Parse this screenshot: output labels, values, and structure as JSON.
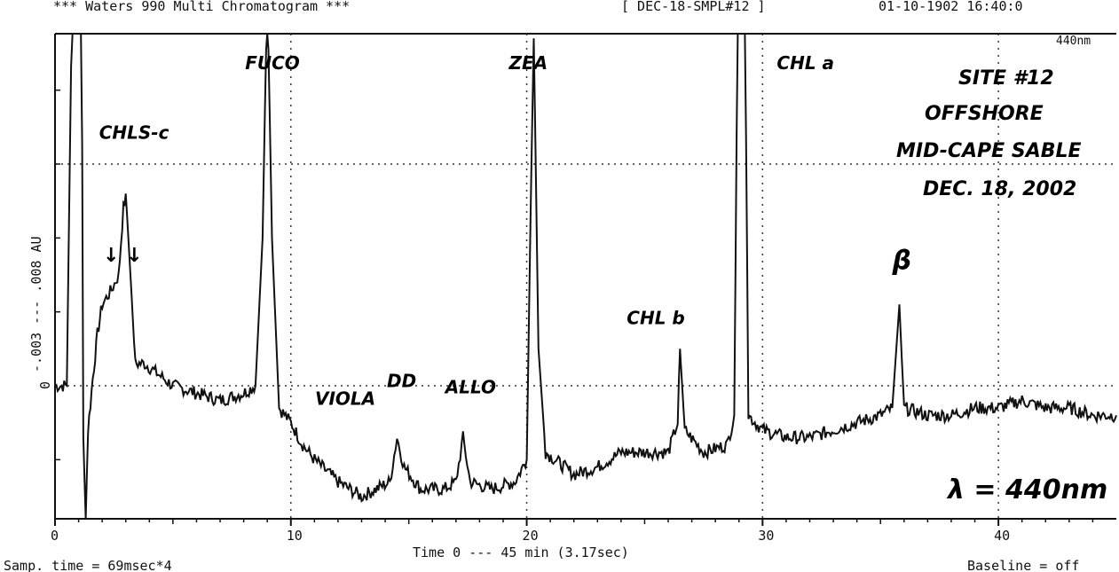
{
  "header": {
    "left": "*** Waters 990 Multi Chromatogram ***",
    "sample": "[ DEC-18-SMPL#12 ]",
    "datetime": "01-10-1902 16:40:0",
    "corner_wavelength": "440nm"
  },
  "footer": {
    "samp_time": "Samp. time = 69msec*4",
    "time_label": "Time  0 --- 45 min  (3.17sec)",
    "baseline": "Baseline = off"
  },
  "annotations": {
    "site_lines": [
      "SITE #12",
      "OFFSHORE",
      "MID-CAPE SABLE",
      "DEC. 18, 2002"
    ],
    "wavelength": "λ = 440nm",
    "arrows": "↓ ↓"
  },
  "chart_data": {
    "type": "line",
    "title": "*** Waters 990 Multi Chromatogram ***",
    "xlabel": "Time  0 --- 45 min  (3.17sec)",
    "ylabel": "-.003 --- .008 AU",
    "xlim": [
      0,
      45
    ],
    "ylim": [
      -0.003,
      0.008
    ],
    "x_ticks": [
      0,
      10,
      20,
      30,
      40
    ],
    "y_ticks": [
      -0.003,
      0,
      0.003,
      0.008
    ],
    "y_tick_labels": [
      "-.003",
      "0",
      ".003",
      ".008"
    ],
    "grid": "dotted",
    "axis_extent": {
      "x_max": 45,
      "y_max": 0.0072
    },
    "peaks": [
      {
        "label": "CHLS-c",
        "x": 3.0,
        "y": 0.0025
      },
      {
        "label": "FUCO",
        "x": 9.0,
        "y": 0.0054
      },
      {
        "label": "VIOLA",
        "x": 11.4,
        "y": -0.0008
      },
      {
        "label": "DD",
        "x": 14.6,
        "y": -0.0005
      },
      {
        "label": "ALLO",
        "x": 17.3,
        "y": -0.0007
      },
      {
        "label": "ZEA",
        "x": 20.3,
        "y": 0.0047
      },
      {
        "label": "CHL b",
        "x": 26.5,
        "y": 0.0005
      },
      {
        "label": "CHL a",
        "x": 29.1,
        "y": 0.0075
      },
      {
        "label": "β",
        "x": 35.8,
        "y": 0.0011
      }
    ],
    "trace": [
      [
        0,
        0
      ],
      [
        0.5,
        0
      ],
      [
        0.8,
        0.0072
      ],
      [
        0.9,
        0.0072
      ],
      [
        1.0,
        0.0072
      ],
      [
        1.1,
        0.0072
      ],
      [
        1.2,
        -0.0007
      ],
      [
        1.3,
        -0.0018
      ],
      [
        1.4,
        -0.0006
      ],
      [
        1.6,
        0.0001
      ],
      [
        1.8,
        0.0007
      ],
      [
        2.0,
        0.0011
      ],
      [
        2.4,
        0.0013
      ],
      [
        2.7,
        0.0015
      ],
      [
        2.9,
        0.0024
      ],
      [
        3.0,
        0.0026
      ],
      [
        3.2,
        0.0015
      ],
      [
        3.4,
        0.0003
      ],
      [
        3.8,
        0.0003
      ],
      [
        4.2,
        0.0002
      ],
      [
        5,
        0
      ],
      [
        6,
        -0.0001
      ],
      [
        7,
        -0.0002
      ],
      [
        8,
        -0.0001
      ],
      [
        8.5,
        0
      ],
      [
        8.8,
        0.002
      ],
      [
        9.0,
        0.0054
      ],
      [
        9.2,
        0.002
      ],
      [
        9.5,
        -0.0003
      ],
      [
        10,
        -0.0005
      ],
      [
        10.5,
        -0.0008
      ],
      [
        11,
        -0.001
      ],
      [
        12,
        -0.0013
      ],
      [
        13,
        -0.0015
      ],
      [
        14.2,
        -0.0013
      ],
      [
        14.5,
        -0.0007
      ],
      [
        14.8,
        -0.0011
      ],
      [
        15.5,
        -0.0014
      ],
      [
        16.5,
        -0.0014
      ],
      [
        17.0,
        -0.0013
      ],
      [
        17.3,
        -0.0007
      ],
      [
        17.6,
        -0.0013
      ],
      [
        18.5,
        -0.0014
      ],
      [
        19.5,
        -0.0013
      ],
      [
        20.0,
        -0.001
      ],
      [
        20.2,
        0.003
      ],
      [
        20.3,
        0.0047
      ],
      [
        20.5,
        0.0005
      ],
      [
        20.8,
        -0.0009
      ],
      [
        22,
        -0.0012
      ],
      [
        23,
        -0.0011
      ],
      [
        24,
        -0.0009
      ],
      [
        25,
        -0.0009
      ],
      [
        26,
        -0.0009
      ],
      [
        26.4,
        -0.0005
      ],
      [
        26.5,
        0.0005
      ],
      [
        26.7,
        -0.0006
      ],
      [
        27.5,
        -0.0009
      ],
      [
        28.5,
        -0.0008
      ],
      [
        28.8,
        -0.0004
      ],
      [
        29.0,
        0.0072
      ],
      [
        29.2,
        0.0072
      ],
      [
        29.4,
        -0.0004
      ],
      [
        30,
        -0.0006
      ],
      [
        31,
        -0.0007
      ],
      [
        32,
        -0.0007
      ],
      [
        33,
        -0.0006
      ],
      [
        34,
        -0.0005
      ],
      [
        35,
        -0.0004
      ],
      [
        35.5,
        -0.0003
      ],
      [
        35.8,
        0.0011
      ],
      [
        36.0,
        -0.0003
      ],
      [
        37,
        -0.0004
      ],
      [
        38,
        -0.0004
      ],
      [
        39,
        -0.0003
      ],
      [
        40,
        -0.0003
      ],
      [
        41,
        -0.0002
      ],
      [
        42,
        -0.0003
      ],
      [
        43,
        -0.0003
      ],
      [
        44,
        -0.0004
      ],
      [
        45,
        -0.0004
      ]
    ]
  },
  "colors": {
    "ink": "#111111",
    "grid": "#333333",
    "background": "#ffffff"
  }
}
